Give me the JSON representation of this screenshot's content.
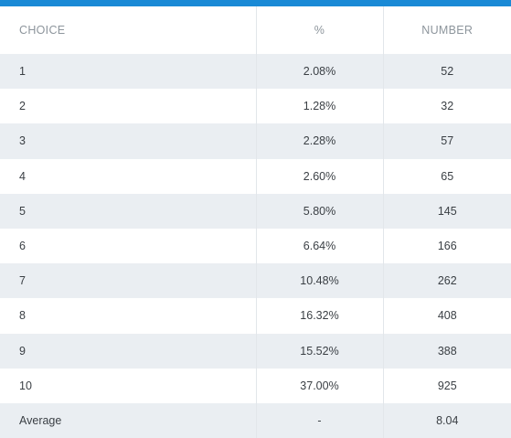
{
  "table": {
    "headers": {
      "choice": "CHOICE",
      "percent": "%",
      "number": "NUMBER"
    },
    "rows": [
      {
        "choice": "1",
        "percent": "2.08%",
        "number": "52"
      },
      {
        "choice": "2",
        "percent": "1.28%",
        "number": "32"
      },
      {
        "choice": "3",
        "percent": "2.28%",
        "number": "57"
      },
      {
        "choice": "4",
        "percent": "2.60%",
        "number": "65"
      },
      {
        "choice": "5",
        "percent": "5.80%",
        "number": "145"
      },
      {
        "choice": "6",
        "percent": "6.64%",
        "number": "166"
      },
      {
        "choice": "7",
        "percent": "10.48%",
        "number": "262"
      },
      {
        "choice": "8",
        "percent": "16.32%",
        "number": "408"
      },
      {
        "choice": "9",
        "percent": "15.52%",
        "number": "388"
      },
      {
        "choice": "10",
        "percent": "37.00%",
        "number": "925"
      },
      {
        "choice": "Average",
        "percent": "-",
        "number": "8.04"
      }
    ]
  },
  "colors": {
    "accent": "#1a8ad6",
    "stripe": "#eaeef2",
    "header_text": "#8d959c",
    "body_text": "#3a3f44"
  }
}
